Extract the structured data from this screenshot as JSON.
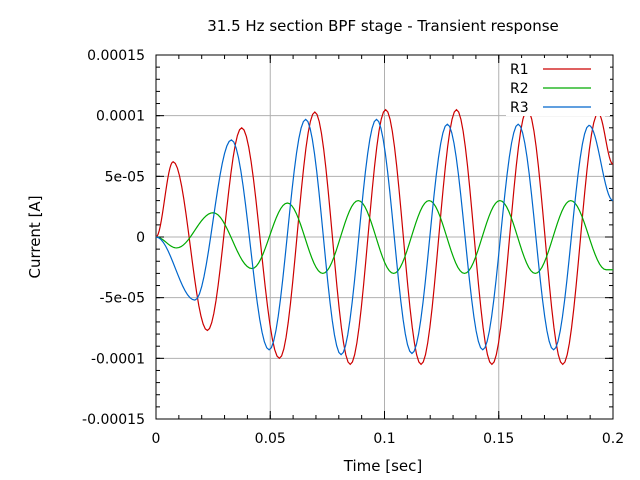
{
  "chart_data": {
    "type": "line",
    "title": "31.5 Hz section BPF stage - Transient response",
    "xlabel": "Time [sec]",
    "ylabel": "Current [A]",
    "xlim": [
      0,
      0.2
    ],
    "ylim": [
      -0.00015,
      0.00015
    ],
    "xticks": [
      0,
      0.05,
      0.1,
      0.15,
      0.2
    ],
    "xtick_labels": [
      "0",
      "0.05",
      "0.1",
      "0.15",
      "0.2"
    ],
    "yticks": [
      -0.00015,
      -0.0001,
      -5e-05,
      0,
      5e-05,
      0.0001,
      0.00015
    ],
    "ytick_labels": [
      "-0.00015",
      "-0.0001",
      "-5e-05",
      "0",
      "5e-05",
      "0.0001",
      "0.00015"
    ],
    "grid": true,
    "legend_position": "top-right",
    "series": [
      {
        "name": "R1",
        "color": "#cc0000",
        "x": [
          0,
          0.0075,
          0.0225,
          0.0375,
          0.054,
          0.0695,
          0.085,
          0.1005,
          0.116,
          0.1315,
          0.147,
          0.1625,
          0.178,
          0.1935,
          0.2
        ],
        "y": [
          0,
          6.2e-05,
          -7.7e-05,
          9e-05,
          -0.0001,
          0.000103,
          -0.000105,
          0.000105,
          -0.000105,
          0.000105,
          -0.000105,
          0.000105,
          -0.000105,
          0.000102,
          6e-05
        ]
      },
      {
        "name": "R2",
        "color": "#00aa00",
        "x": [
          0,
          0.009,
          0.025,
          0.042,
          0.0575,
          0.073,
          0.0885,
          0.104,
          0.1195,
          0.135,
          0.1505,
          0.166,
          0.1815,
          0.197,
          0.2
        ],
        "y": [
          0,
          -9e-06,
          2e-05,
          -2.6e-05,
          2.8e-05,
          -3e-05,
          3e-05,
          -3e-05,
          3e-05,
          -3e-05,
          3e-05,
          -3e-05,
          3e-05,
          -2.7e-05,
          -2.7e-05
        ]
      },
      {
        "name": "R3",
        "color": "#0066cc",
        "x": [
          0,
          0.017,
          0.033,
          0.0495,
          0.0655,
          0.081,
          0.0965,
          0.112,
          0.1275,
          0.143,
          0.1585,
          0.174,
          0.1895,
          0.2
        ],
        "y": [
          0,
          -5.2e-05,
          8e-05,
          -9.3e-05,
          9.7e-05,
          -9.7e-05,
          9.7e-05,
          -9.6e-05,
          9.3e-05,
          -9.3e-05,
          9.3e-05,
          -9.3e-05,
          9.2e-05,
          3e-05
        ]
      }
    ]
  }
}
